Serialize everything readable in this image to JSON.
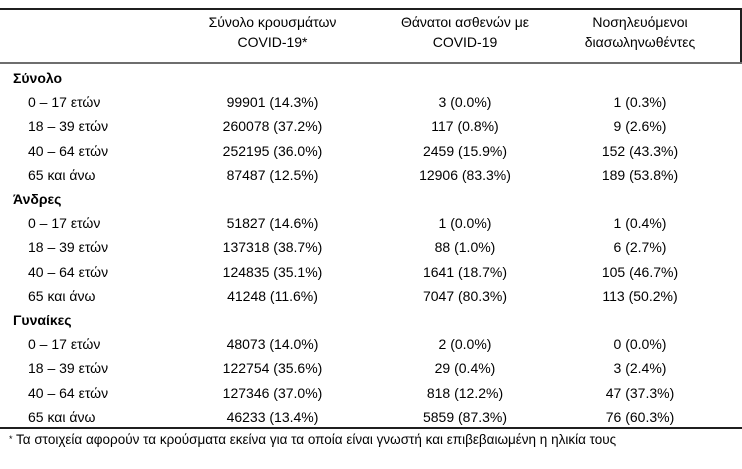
{
  "colors": {
    "background": "#ffffff",
    "text": "#000000",
    "rule_dark": "#1f1f1f",
    "rule_gray": "#6e6e6e"
  },
  "table": {
    "column_headers": [
      {
        "line1": "Σύνολο κρουσμάτων",
        "line2": "COVID-19*"
      },
      {
        "line1": "Θάνατοι ασθενών με",
        "line2": "COVID-19"
      },
      {
        "line1": "Νοσηλευόμενοι",
        "line2": "διασωληνωθέντες"
      }
    ],
    "sections": [
      {
        "title": "Σύνολο",
        "rows": [
          {
            "label": "0 – 17 ετών",
            "cases": "99901 (14.3%)",
            "deaths": "3 (0.0%)",
            "intubated": "1 (0.3%)"
          },
          {
            "label": "18 – 39 ετών",
            "cases": "260078 (37.2%)",
            "deaths": "117 (0.8%)",
            "intubated": "9 (2.6%)"
          },
          {
            "label": "40 – 64 ετών",
            "cases": "252195 (36.0%)",
            "deaths": "2459 (15.9%)",
            "intubated": "152 (43.3%)"
          },
          {
            "label": "65 και άνω",
            "cases": "87487 (12.5%)",
            "deaths": "12906 (83.3%)",
            "intubated": "189 (53.8%)"
          }
        ]
      },
      {
        "title": "Άνδρες",
        "rows": [
          {
            "label": "0 – 17 ετών",
            "cases": "51827 (14.6%)",
            "deaths": "1 (0.0%)",
            "intubated": "1 (0.4%)"
          },
          {
            "label": "18 – 39 ετών",
            "cases": "137318 (38.7%)",
            "deaths": "88 (1.0%)",
            "intubated": "6 (2.7%)"
          },
          {
            "label": "40 – 64 ετών",
            "cases": "124835 (35.1%)",
            "deaths": "1641 (18.7%)",
            "intubated": "105 (46.7%)"
          },
          {
            "label": "65 και άνω",
            "cases": "41248 (11.6%)",
            "deaths": "7047 (80.3%)",
            "intubated": "113 (50.2%)"
          }
        ]
      },
      {
        "title": "Γυναίκες",
        "rows": [
          {
            "label": "0 – 17 ετών",
            "cases": "48073 (14.0%)",
            "deaths": "2 (0.0%)",
            "intubated": "0 (0.0%)"
          },
          {
            "label": "18 – 39 ετών",
            "cases": "122754 (35.6%)",
            "deaths": "29 (0.4%)",
            "intubated": "3 (2.4%)"
          },
          {
            "label": "40 – 64 ετών",
            "cases": "127346 (37.0%)",
            "deaths": "818 (12.2%)",
            "intubated": "47 (37.3%)"
          },
          {
            "label": "65 και άνω",
            "cases": "46233 (13.4%)",
            "deaths": "5859 (87.3%)",
            "intubated": "76 (60.3%)"
          }
        ]
      }
    ],
    "footnote": {
      "marker": "*",
      "text": "Τα στοιχεία αφορούν τα κρούσματα εκείνα για τα οποία είναι γνωστή και επιβεβαιωμένη η ηλικία τους"
    }
  }
}
